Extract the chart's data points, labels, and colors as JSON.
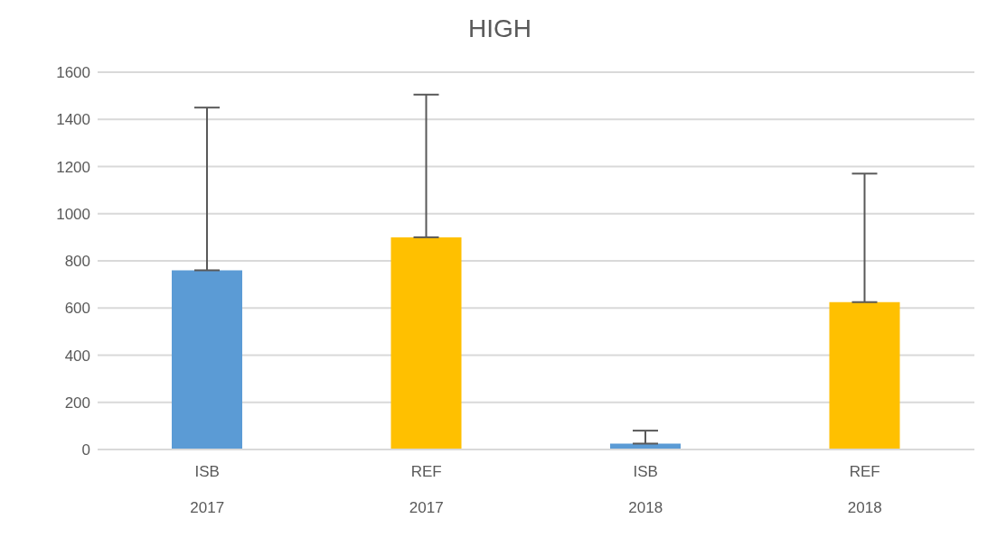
{
  "chart_data": {
    "type": "bar",
    "title": "HIGH",
    "categories": [
      "ISB\n2017",
      "REF\n2017",
      "ISB\n2018",
      "REF\n2018"
    ],
    "values": [
      760,
      900,
      25,
      625
    ],
    "colors": [
      "#5b9bd5",
      "#ffc000",
      "#5b9bd5",
      "#ffc000"
    ],
    "errors": [
      [
        760,
        1450
      ],
      [
        900,
        1505
      ],
      [
        25,
        80
      ],
      [
        625,
        1170
      ]
    ],
    "ylim": [
      0,
      1600
    ],
    "yticks": [
      0,
      200,
      400,
      600,
      800,
      1000,
      1200,
      1400,
      1600
    ],
    "grid": "y"
  }
}
